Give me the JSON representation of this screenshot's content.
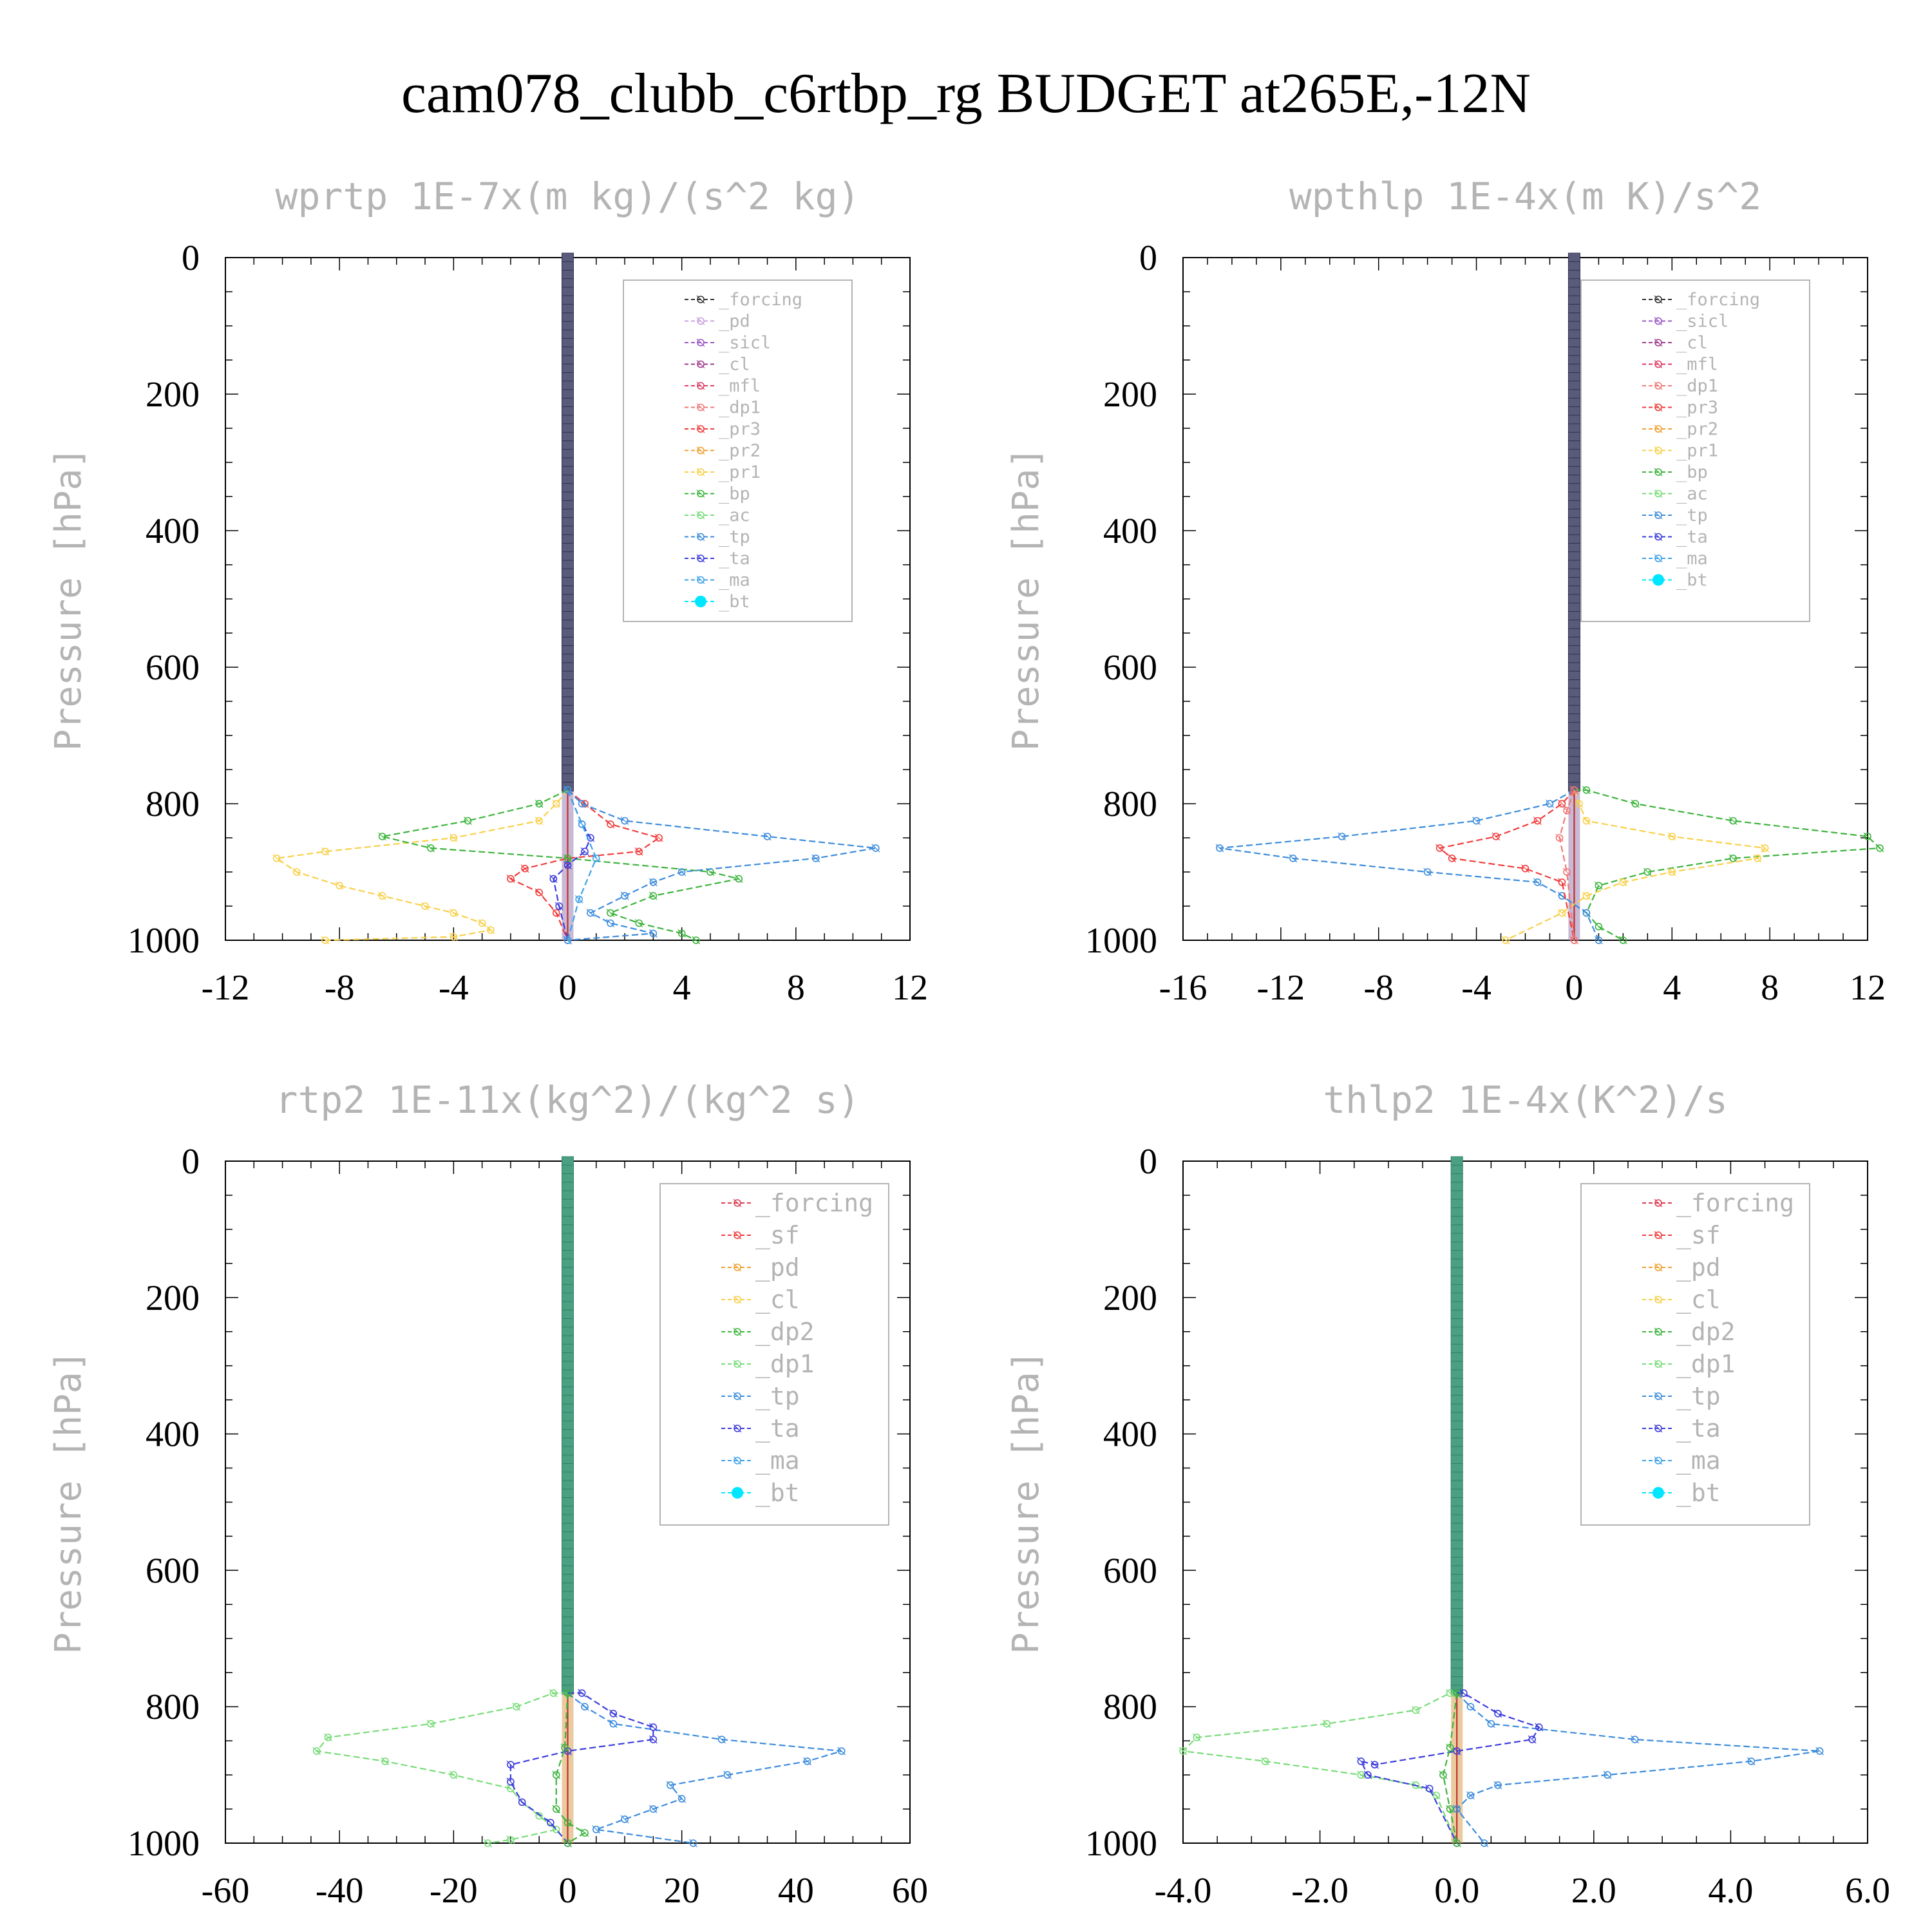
{
  "title": "cam078_clubb_c6rtbp_rg  BUDGET at265E,-12N",
  "colors": {
    "_forcing": "#333333",
    "_pd": "#c8a0e0",
    "_sicl": "#9a55c8",
    "_cl": "#a03c8c",
    "_mfl": "#dc3c64",
    "_dp1": "#f07878",
    "_pr3": "#f03c3c",
    "_pr2": "#f0a030",
    "_pr1": "#f8d048",
    "_bp": "#3cb43c",
    "_ac": "#78dc78",
    "_tp": "#3c8cdc",
    "_ta": "#3c3cdc",
    "_ma": "#3ca0e8",
    "_bt": "#00e6ff",
    "_sf": "#f03c3c",
    "_dp2": "#3cb43c",
    "forcing_b": "#dc3c50",
    "pd_b": "#f0a030",
    "cl_b": "#f8d048",
    "dp1_b": "#78dc78"
  },
  "chart_data": [
    {
      "type": "line",
      "title": "wprtp  1E-7x(m kg)/(s^2 kg)",
      "ylabel": "Pressure [hPa]",
      "xlim": [
        -12,
        12
      ],
      "ylim": [
        1000,
        0
      ],
      "xticks": [
        "-12",
        "-8",
        "-4",
        "0",
        "4",
        "8",
        "12"
      ],
      "yticks": [
        "0",
        "200",
        "400",
        "600",
        "800",
        "1000"
      ],
      "legend": [
        "_forcing",
        "_pd",
        "_sicl",
        "_cl",
        "_mfl",
        "_dp1",
        "_pr3",
        "_pr2",
        "_pr1",
        "_bp",
        "_ac",
        "_tp",
        "_ta",
        "_ma",
        "_bt"
      ],
      "series": [
        {
          "name": "_pr1",
          "color_key": "_pr1",
          "x": [
            0,
            -0.4,
            -1,
            -4,
            -8.5,
            -10.2,
            -9.5,
            -8,
            -6.5,
            -5,
            -4,
            -3,
            -2.7,
            -4,
            -8.5
          ],
          "y": [
            780,
            800,
            825,
            850,
            870,
            880,
            900,
            920,
            935,
            950,
            960,
            975,
            985,
            995,
            1000
          ]
        },
        {
          "name": "_pr3",
          "color_key": "_pr3",
          "x": [
            0,
            0.6,
            1.5,
            3.2,
            2.5,
            0,
            -1.5,
            -2,
            -1,
            -0.4,
            0
          ],
          "y": [
            780,
            800,
            830,
            850,
            870,
            880,
            895,
            910,
            930,
            960,
            1000
          ]
        },
        {
          "name": "_bp",
          "color_key": "_bp",
          "x": [
            0,
            -1,
            -3.5,
            -6.5,
            -4.8,
            0,
            5,
            6,
            3,
            1.5,
            2.5,
            4,
            4.5
          ],
          "y": [
            780,
            800,
            825,
            848,
            865,
            880,
            900,
            910,
            935,
            960,
            975,
            990,
            1000
          ]
        },
        {
          "name": "_tp",
          "color_key": "_tp",
          "x": [
            0,
            0.5,
            2,
            7,
            10.8,
            8.7,
            4,
            3,
            2,
            0.8,
            1.5,
            3,
            0
          ],
          "y": [
            780,
            800,
            825,
            848,
            865,
            880,
            900,
            915,
            935,
            960,
            975,
            990,
            1000
          ]
        },
        {
          "name": "_ta",
          "color_key": "_ta",
          "x": [
            0,
            0.5,
            0.8,
            0.6,
            0,
            -0.5,
            -0.3,
            0
          ],
          "y": [
            780,
            830,
            850,
            870,
            890,
            910,
            950,
            1000
          ]
        },
        {
          "name": "_ma",
          "color_key": "_ma",
          "x": [
            0,
            0.5,
            1,
            0.4,
            0
          ],
          "y": [
            780,
            830,
            880,
            940,
            1000
          ]
        }
      ]
    },
    {
      "type": "line",
      "title": "wpthlp  1E-4x(m K)/s^2",
      "ylabel": "Pressure [hPa]",
      "xlim": [
        -16,
        12
      ],
      "ylim": [
        1000,
        0
      ],
      "xticks": [
        "-16",
        "-12",
        "-8",
        "-4",
        "0",
        "4",
        "8",
        "12"
      ],
      "yticks": [
        "0",
        "200",
        "400",
        "600",
        "800",
        "1000"
      ],
      "legend": [
        "_forcing",
        "_sicl",
        "_cl",
        "_mfl",
        "_dp1",
        "_pr3",
        "_pr2",
        "_pr1",
        "_bp",
        "_ac",
        "_tp",
        "_ta",
        "_ma",
        "_bt"
      ],
      "series": [
        {
          "name": "_bp",
          "color_key": "_bp",
          "x": [
            0,
            0.5,
            2.5,
            6.5,
            12,
            12.5,
            6.5,
            3,
            1,
            0.5,
            1,
            2
          ],
          "y": [
            780,
            780,
            800,
            825,
            848,
            865,
            880,
            900,
            920,
            960,
            980,
            1000
          ]
        },
        {
          "name": "_pr1",
          "color_key": "_pr1",
          "x": [
            0,
            0.2,
            0.5,
            4,
            7.8,
            7.5,
            4,
            2,
            0.5,
            -0.5,
            -2.8
          ],
          "y": [
            780,
            800,
            825,
            848,
            865,
            880,
            900,
            915,
            935,
            960,
            1000
          ]
        },
        {
          "name": "_tp",
          "color_key": "_tp",
          "x": [
            0,
            -1,
            -4,
            -9.5,
            -14.5,
            -11.5,
            -6,
            -1.5,
            -0.5,
            0.5,
            1
          ],
          "y": [
            780,
            800,
            825,
            848,
            865,
            880,
            900,
            915,
            935,
            960,
            1000
          ]
        },
        {
          "name": "_pr3",
          "color_key": "_pr3",
          "x": [
            0,
            -0.5,
            -1.5,
            -3.2,
            -5.5,
            -5,
            -2,
            -0.5,
            0
          ],
          "y": [
            780,
            800,
            825,
            848,
            865,
            880,
            895,
            915,
            1000
          ]
        },
        {
          "name": "_dp1",
          "color_key": "_dp1",
          "x": [
            0,
            -0.3,
            -0.6,
            -0.3,
            0
          ],
          "y": [
            780,
            810,
            850,
            900,
            1000
          ]
        }
      ]
    },
    {
      "type": "line",
      "title": "rtp2  1E-11x(kg^2)/(kg^2 s)",
      "ylabel": "Pressure [hPa]",
      "xlim": [
        -60,
        60
      ],
      "ylim": [
        1000,
        0
      ],
      "xticks": [
        "-60",
        "-40",
        "-20",
        "0",
        "20",
        "40",
        "60"
      ],
      "yticks": [
        "0",
        "200",
        "400",
        "600",
        "800",
        "1000"
      ],
      "legend": [
        "_forcing",
        "_sf",
        "_pd",
        "_cl",
        "_dp2",
        "_dp1",
        "_tp",
        "_ta",
        "_ma",
        "_bt"
      ],
      "series": [
        {
          "name": "_dp1",
          "color_key": "_ac",
          "x": [
            0,
            -2.5,
            -9,
            -24,
            -42,
            -44,
            -32,
            -20,
            -10,
            -8,
            -5,
            -2,
            -10,
            -14
          ],
          "y": [
            780,
            780,
            800,
            825,
            845,
            865,
            880,
            900,
            920,
            940,
            960,
            980,
            995,
            1000
          ]
        },
        {
          "name": "_tp",
          "color_key": "_tp",
          "x": [
            0,
            3,
            8,
            27,
            48,
            42,
            28,
            18,
            20,
            15,
            10,
            5,
            22
          ],
          "y": [
            780,
            800,
            825,
            848,
            865,
            880,
            900,
            915,
            935,
            950,
            965,
            980,
            1000
          ]
        },
        {
          "name": "_ta",
          "color_key": "_ta",
          "x": [
            0,
            2.5,
            8,
            15,
            15,
            0,
            -10,
            -10,
            -8,
            -3,
            0
          ],
          "y": [
            780,
            780,
            810,
            830,
            848,
            865,
            885,
            910,
            940,
            970,
            1000
          ]
        },
        {
          "name": "_dp2",
          "color_key": "_dp2",
          "x": [
            0,
            -0.5,
            -2,
            -2,
            0,
            3,
            0
          ],
          "y": [
            780,
            860,
            900,
            950,
            970,
            985,
            1000
          ]
        }
      ]
    },
    {
      "type": "line",
      "title": "thlp2  1E-4x(K^2)/s",
      "ylabel": "Pressure [hPa]",
      "xlim": [
        -4,
        6
      ],
      "ylim": [
        1000,
        0
      ],
      "xticks": [
        "-4.0",
        "-2.0",
        "0.0",
        "2.0",
        "4.0",
        "6.0"
      ],
      "yticks": [
        "0",
        "200",
        "400",
        "600",
        "800",
        "1000"
      ],
      "legend": [
        "_forcing",
        "_sf",
        "_pd",
        "_cl",
        "_dp2",
        "_dp1",
        "_tp",
        "_ta",
        "_ma",
        "_bt"
      ],
      "series": [
        {
          "name": "_dp1",
          "color_key": "_ac",
          "x": [
            0,
            -0.1,
            -0.6,
            -1.9,
            -3.8,
            -4,
            -2.8,
            -1.4,
            -0.6,
            -0.3,
            0
          ],
          "y": [
            780,
            780,
            805,
            825,
            845,
            865,
            880,
            900,
            915,
            930,
            1000
          ]
        },
        {
          "name": "_tp",
          "color_key": "_tp",
          "x": [
            0,
            0.2,
            0.5,
            2.6,
            5.3,
            4.3,
            2.2,
            0.6,
            0.2,
            0,
            0.4
          ],
          "y": [
            780,
            800,
            825,
            848,
            865,
            880,
            900,
            915,
            930,
            950,
            1000
          ]
        },
        {
          "name": "_ta",
          "color_key": "_ta",
          "x": [
            0,
            0.1,
            0.6,
            1.2,
            1.1,
            0,
            -1.2,
            -1.4,
            -1.3,
            -0.4,
            0
          ],
          "y": [
            780,
            780,
            810,
            830,
            848,
            865,
            885,
            880,
            900,
            920,
            1000
          ]
        },
        {
          "name": "_dp2",
          "color_key": "_dp2",
          "x": [
            0,
            -0.1,
            -0.2,
            -0.1,
            0
          ],
          "y": [
            780,
            860,
            900,
            950,
            1000
          ]
        }
      ]
    }
  ]
}
